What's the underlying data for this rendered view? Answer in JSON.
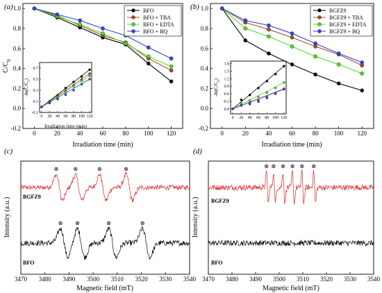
{
  "chart_data": [
    {
      "panel": "(a)",
      "type": "line",
      "x": [
        0,
        20,
        40,
        60,
        80,
        100,
        120
      ],
      "xlabel": "Irradiation time (min)",
      "ylabel": "C/C0",
      "xlim": [
        -10,
        130
      ],
      "ylim": [
        -0.2,
        1.05
      ],
      "xticks": [
        "0",
        "20",
        "40",
        "60",
        "80",
        "100",
        "120"
      ],
      "yticks": [
        "-0.2",
        "0.0",
        "0.2",
        "0.4",
        "0.6",
        "0.8",
        "1.0"
      ],
      "legend_position": "top-right",
      "series": [
        {
          "name": "BFO",
          "color": "#000000",
          "values": [
            1.0,
            0.91,
            0.81,
            0.71,
            0.64,
            0.45,
            0.27
          ]
        },
        {
          "name": "BFO + TBA",
          "color": "#a0522d",
          "values": [
            1.0,
            0.93,
            0.83,
            0.73,
            0.66,
            0.5,
            0.38
          ]
        },
        {
          "name": "BFO + EDTA",
          "color": "#55dd22",
          "values": [
            1.0,
            0.92,
            0.84,
            0.75,
            0.65,
            0.52,
            0.42
          ]
        },
        {
          "name": "BFO + BQ",
          "color": "#3344dd",
          "values": [
            1.0,
            0.94,
            0.88,
            0.8,
            0.73,
            0.61,
            0.5
          ]
        }
      ],
      "inset": {
        "xlabel": "Irradiation time (min)",
        "ylabel": "-ln(C/C0)",
        "xlim": [
          -5,
          125
        ],
        "ylim": [
          -0.1,
          0.8
        ],
        "xticks": [
          "0",
          "20",
          "40",
          "60",
          "80",
          "100",
          "120"
        ],
        "yticks": [
          "-0.1",
          "0.1",
          "0.3",
          "0.5",
          "0.7"
        ],
        "x": [
          0,
          20,
          40,
          60,
          80,
          100,
          120
        ],
        "series": [
          {
            "name": "BFO",
            "color": "#000000",
            "values": [
              0.0,
              0.1,
              0.21,
              0.34,
              0.45,
              0.55,
              0.67
            ]
          },
          {
            "name": "BFO + TBA",
            "color": "#a0522d",
            "values": [
              0.0,
              0.09,
              0.19,
              0.29,
              0.39,
              0.5,
              0.6
            ]
          },
          {
            "name": "BFO + EDTA",
            "color": "#55dd22",
            "values": [
              0.0,
              0.08,
              0.17,
              0.27,
              0.37,
              0.47,
              0.56
            ]
          },
          {
            "name": "BFO + BQ",
            "color": "#3344dd",
            "values": [
              0.0,
              0.07,
              0.14,
              0.22,
              0.3,
              0.41,
              0.5
            ]
          }
        ]
      }
    },
    {
      "panel": "(b)",
      "type": "line",
      "x": [
        0,
        20,
        40,
        60,
        80,
        100,
        120
      ],
      "xlabel": "Irradiation time (min)",
      "ylabel": "",
      "xlim": [
        -10,
        130
      ],
      "ylim": [
        -0.2,
        1.05
      ],
      "xticks": [
        "0",
        "20",
        "40",
        "60",
        "80",
        "100",
        "120"
      ],
      "yticks": [
        "-0.2",
        "0.0",
        "0.2",
        "0.4",
        "0.6",
        "0.8",
        "1.0"
      ],
      "legend_position": "top-right",
      "series": [
        {
          "name": "BGFZ9",
          "color": "#000000",
          "values": [
            1.0,
            0.68,
            0.55,
            0.44,
            0.34,
            0.25,
            0.18
          ]
        },
        {
          "name": "BGFZ9 + TBA",
          "color": "#a0522d",
          "values": [
            1.0,
            0.86,
            0.79,
            0.71,
            0.62,
            0.54,
            0.43
          ]
        },
        {
          "name": "BGFZ9 + EDTA",
          "color": "#55dd22",
          "values": [
            1.0,
            0.8,
            0.72,
            0.62,
            0.52,
            0.44,
            0.35
          ]
        },
        {
          "name": "BGFZ9 + BQ",
          "color": "#3344dd",
          "values": [
            1.0,
            0.88,
            0.83,
            0.75,
            0.65,
            0.55,
            0.46
          ]
        }
      ],
      "inset": {
        "xlabel": "Irradiation time (min)",
        "ylabel": "-ln(C/C0)",
        "xlim": [
          -5,
          125
        ],
        "ylim": [
          -0.2,
          1.9
        ],
        "xticks": [
          "0",
          "20",
          "40",
          "60",
          "80",
          "100",
          "120"
        ],
        "yticks": [
          "0.0",
          "0.3",
          "0.6",
          "0.9",
          "1.2",
          "1.5",
          "1.8"
        ],
        "x": [
          0,
          20,
          40,
          60,
          80,
          100,
          120
        ],
        "series": [
          {
            "name": "BGFZ9",
            "color": "#000000",
            "values": [
              0.0,
              0.36,
              0.55,
              0.83,
              1.1,
              1.38,
              1.7
            ]
          },
          {
            "name": "BGFZ9 + TBA",
            "color": "#a0522d",
            "values": [
              0.0,
              0.15,
              0.24,
              0.34,
              0.48,
              0.62,
              0.8
            ]
          },
          {
            "name": "BGFZ9 + EDTA",
            "color": "#55dd22",
            "values": [
              0.0,
              0.22,
              0.33,
              0.48,
              0.65,
              0.83,
              1.05
            ]
          },
          {
            "name": "BGFZ9 + BQ",
            "color": "#3344dd",
            "values": [
              0.0,
              0.13,
              0.19,
              0.29,
              0.43,
              0.6,
              0.78
            ]
          }
        ]
      }
    },
    {
      "panel": "(c)",
      "type": "line",
      "xlabel": "Magnetic field (mT)",
      "ylabel": "Intensity (a.u.)",
      "xlim": [
        3470,
        3540
      ],
      "xticks": [
        "3470",
        "3480",
        "3490",
        "3500",
        "3510",
        "3520",
        "3530",
        "3540"
      ],
      "series": [
        {
          "name": "BGFZ9",
          "color": "#dd2222",
          "peaks_mT": [
            3486,
            3494,
            3504,
            3515
          ],
          "marker": "⊗"
        },
        {
          "name": "BFO",
          "color": "#000000",
          "peaks_mT": [
            3488,
            3495,
            3508,
            3522
          ],
          "marker": "⊗"
        }
      ]
    },
    {
      "panel": "(d)",
      "type": "line",
      "xlabel": "Magnetic field (mT)",
      "ylabel": "Intensity (a.u.)",
      "xlim": [
        3470,
        3540
      ],
      "xticks": [
        "3470",
        "3480",
        "3490",
        "3500",
        "3510",
        "3520",
        "3530",
        "3540"
      ],
      "series": [
        {
          "name": "BGFZ9",
          "color": "#dd2222",
          "peaks_mT": [
            3495,
            3498,
            3502,
            3506,
            3510,
            3515
          ],
          "marker": "⊗"
        },
        {
          "name": "BFO",
          "color": "#000000",
          "peaks_mT": [],
          "marker": "⊗"
        }
      ]
    }
  ]
}
